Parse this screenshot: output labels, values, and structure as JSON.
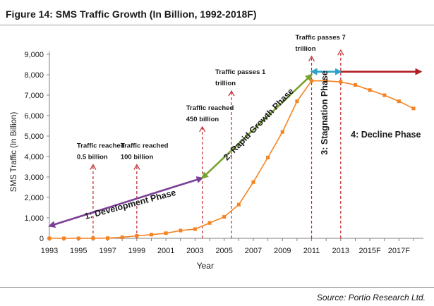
{
  "figure": {
    "title": "Figure 14:  SMS Traffic Growth (In Billion, 1992-2018F)",
    "source": "Source: Portio Research Ltd."
  },
  "chart_data": {
    "type": "line",
    "xlabel": "Year",
    "ylabel": "SMS Traffic (In Billion)",
    "ylim": [
      0,
      9000
    ],
    "xlim": [
      1993,
      2018
    ],
    "grid": false,
    "y_ticks": [
      "0",
      "1,000",
      "2,000",
      "3,000",
      "4,000",
      "5,000",
      "6,000",
      "7,000",
      "8,000",
      "9,000"
    ],
    "x_ticks": [
      {
        "x": 1993,
        "label": "1993"
      },
      {
        "x": 1995,
        "label": "1995"
      },
      {
        "x": 1997,
        "label": "1997"
      },
      {
        "x": 1999,
        "label": "1999"
      },
      {
        "x": 2001,
        "label": "2001"
      },
      {
        "x": 2003,
        "label": "2003"
      },
      {
        "x": 2005,
        "label": "2005"
      },
      {
        "x": 2007,
        "label": "2007"
      },
      {
        "x": 2009,
        "label": "2009"
      },
      {
        "x": 2011,
        "label": "2011"
      },
      {
        "x": 2013,
        "label": "2013"
      },
      {
        "x": 2015,
        "label": "2015F"
      },
      {
        "x": 2017,
        "label": "2017F"
      }
    ],
    "series": [
      {
        "color": "#F58220",
        "x": [
          1993,
          1994,
          1995,
          1996,
          1997,
          1998,
          1999,
          2000,
          2001,
          2002,
          2003,
          2004,
          2005,
          2006,
          2007,
          2008,
          2009,
          2010,
          2011,
          2012,
          2013,
          2014,
          2015,
          2016,
          2017,
          2018
        ],
        "y": [
          0,
          0,
          0,
          5,
          10,
          50,
          120,
          180,
          250,
          380,
          450,
          750,
          1050,
          1650,
          2750,
          3950,
          5200,
          6700,
          7700,
          7700,
          7650,
          7500,
          7250,
          7000,
          6700,
          6350
        ]
      }
    ],
    "milestones": [
      {
        "x": 1996,
        "y_top": 3600,
        "label_lines": [
          "Traffic reached",
          "0.5 billion"
        ]
      },
      {
        "x": 1999,
        "y_top": 3600,
        "label_lines": [
          "Traffic reached",
          "100 billion"
        ]
      },
      {
        "x": 2003.5,
        "y_top": 5450,
        "label_lines": [
          "Traffic reached",
          "450 billion"
        ]
      },
      {
        "x": 2005.5,
        "y_top": 7200,
        "label_lines": [
          "Traffic passes 1",
          "trillion"
        ]
      },
      {
        "x": 2011,
        "y_top": 8900,
        "label_lines": [
          "Traffic passes 7",
          "trillion"
        ]
      },
      {
        "x": 2013,
        "y_top": 9200,
        "label_lines": []
      }
    ],
    "phases": [
      {
        "name": "Development Phase",
        "label": "1: Development Phase",
        "color": "#7B3F98",
        "x1": 1993,
        "y1": 600,
        "x2": 2003.5,
        "y2": 2950
      },
      {
        "name": "Rapid Growth Phase",
        "label": "2: Rapid Growth Phase",
        "color": "#78A22F",
        "x1": 2003.5,
        "y1": 2950,
        "x2": 2011,
        "y2": 8000
      },
      {
        "name": "Stagnation Phase",
        "label": "3: Stagnation Phase",
        "color": "#2AA4C9",
        "x1": 2011,
        "y1": 8150,
        "x2": 2013,
        "y2": 8150
      },
      {
        "name": "Decline Phase",
        "label": "4: Decline Phase",
        "color": "#B01E23",
        "x1": 2013,
        "y1": 8150,
        "x2": 2018.5,
        "y2": 8150
      }
    ]
  }
}
